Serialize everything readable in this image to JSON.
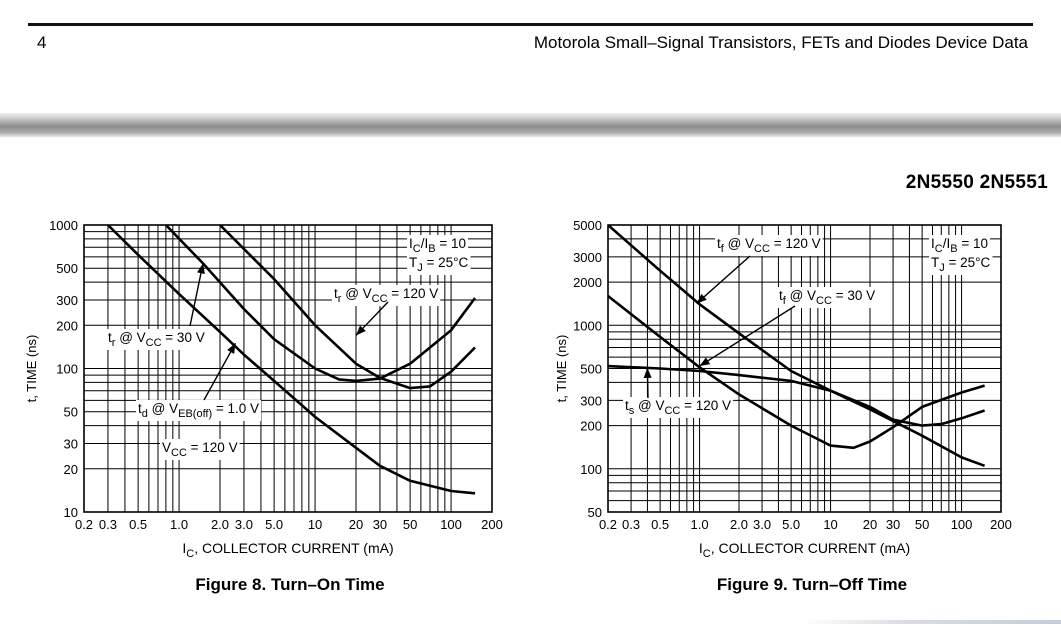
{
  "header": {
    "page_number": "4",
    "running_title": "Motorola Small–Signal Transistors, FETs and Diodes Device Data"
  },
  "part_title": "2N5550 2N5551",
  "chart_data": [
    {
      "id": "fig8",
      "type": "line",
      "title": "Figure 8. Turn–On Time",
      "xlabel": "I_C, COLLECTOR CURRENT (mA)",
      "ylabel": "t, TIME (ns)",
      "xscale": "log",
      "yscale": "log",
      "xlim": [
        0.2,
        200
      ],
      "ylim": [
        10,
        1000
      ],
      "grid": true,
      "xticks": [
        0.2,
        0.3,
        0.5,
        1.0,
        2.0,
        3.0,
        5.0,
        10,
        20,
        30,
        50,
        100,
        200
      ],
      "xtick_labels": [
        "0.2",
        "0.3",
        "0.5",
        "1.0",
        "2.0",
        "3.0",
        "5.0",
        "10",
        "20",
        "30",
        "50",
        "100",
        "200"
      ],
      "yticks": [
        10,
        20,
        30,
        50,
        100,
        200,
        300,
        500,
        1000
      ],
      "ytick_labels": [
        "10",
        "20",
        "30",
        "50",
        "100",
        "200",
        "300",
        "500",
        "1000"
      ],
      "conditions": [
        "I_C/I_B = 10",
        "T_J = 25°C"
      ],
      "series": [
        {
          "name": "t_d @ V_EB(off) = 1.0 V, V_CC = 120 V",
          "x": [
            0.3,
            0.5,
            1.0,
            2.0,
            3.0,
            5.0,
            10,
            20,
            30,
            50,
            100,
            150
          ],
          "y": [
            1000,
            620,
            330,
            180,
            125,
            82,
            46,
            28,
            21,
            16.5,
            14,
            13.5
          ]
        },
        {
          "name": "t_r @ V_CC = 30 V",
          "x": [
            0.8,
            1.5,
            3.0,
            5.0,
            10,
            15,
            20,
            30,
            50,
            100,
            150
          ],
          "y": [
            1000,
            540,
            260,
            160,
            100,
            84,
            82,
            85,
            108,
            185,
            310
          ]
        },
        {
          "name": "t_r @ V_CC = 120 V",
          "x": [
            2.0,
            5.0,
            10,
            20,
            30,
            50,
            70,
            100,
            150
          ],
          "y": [
            1000,
            420,
            200,
            108,
            86,
            73,
            75,
            95,
            140
          ]
        }
      ],
      "annotations": {
        "tr30": {
          "t": "t",
          "sub": "r",
          "mid": " @ V",
          "sub2": "CC",
          "end": " = 30 V"
        },
        "tr120": {
          "t": "t",
          "sub": "r",
          "mid": " @ V",
          "sub2": "CC",
          "end": " = 120 V"
        },
        "td": {
          "t": "t",
          "sub": "d",
          "mid": " @ V",
          "sub2": "EB(off)",
          "end": " = 1.0 V"
        },
        "vcc": {
          "t": "V",
          "sub": "CC",
          "end": " = 120 V"
        },
        "cond1": {
          "t": "I",
          "sub": "C",
          "mid": "/I",
          "sub2": "B",
          "end": " = 10"
        },
        "cond2": {
          "t": "T",
          "sub": "J",
          "end": " = 25°C"
        },
        "xlabel": {
          "t": "I",
          "sub": "C",
          "end": ", COLLECTOR CURRENT (mA)"
        },
        "ylabel": "t, TIME (ns)"
      }
    },
    {
      "id": "fig9",
      "type": "line",
      "title": "Figure 9. Turn–Off Time",
      "xlabel": "I_C, COLLECTOR CURRENT (mA)",
      "ylabel": "t, TIME (ns)",
      "xscale": "log",
      "yscale": "log",
      "xlim": [
        0.2,
        200
      ],
      "ylim": [
        50,
        5000
      ],
      "grid": true,
      "xticks": [
        0.2,
        0.3,
        0.5,
        1.0,
        2.0,
        3.0,
        5.0,
        10,
        20,
        30,
        50,
        100,
        200
      ],
      "xtick_labels": [
        "0.2",
        "0.3",
        "0.5",
        "1.0",
        "2.0",
        "3.0",
        "5.0",
        "10",
        "20",
        "30",
        "50",
        "100",
        "200"
      ],
      "yticks": [
        50,
        100,
        200,
        300,
        500,
        1000,
        2000,
        3000,
        5000
      ],
      "ytick_labels": [
        "50",
        "100",
        "200",
        "300",
        "500",
        "1000",
        "2000",
        "3000",
        "5000"
      ],
      "conditions": [
        "I_C/I_B = 10",
        "T_J = 25°C"
      ],
      "series": [
        {
          "name": "t_f @ V_CC = 120 V",
          "x": [
            0.2,
            0.5,
            1.0,
            2.0,
            5.0,
            10,
            20,
            50,
            100,
            150
          ],
          "y": [
            5000,
            2400,
            1400,
            880,
            480,
            350,
            260,
            170,
            120,
            105
          ]
        },
        {
          "name": "t_f @ V_CC = 30 V",
          "x": [
            0.2,
            0.5,
            1.0,
            2.0,
            5.0,
            10,
            15,
            20,
            30,
            50,
            100,
            150
          ],
          "y": [
            1600,
            830,
            510,
            330,
            200,
            145,
            140,
            155,
            195,
            270,
            340,
            380
          ]
        },
        {
          "name": "t_s @ V_CC = 120 V",
          "x": [
            0.2,
            0.5,
            1.0,
            2.0,
            5.0,
            10,
            20,
            30,
            50,
            70,
            100,
            150
          ],
          "y": [
            520,
            500,
            480,
            450,
            410,
            350,
            270,
            220,
            200,
            205,
            225,
            255
          ]
        }
      ],
      "annotations": {
        "tf120": {
          "t": "t",
          "sub": "f",
          "mid": " @ V",
          "sub2": "CC",
          "end": " = 120 V"
        },
        "tf30": {
          "t": "t",
          "sub": "f",
          "mid": " @ V",
          "sub2": "CC",
          "end": " = 30 V"
        },
        "ts120": {
          "t": "t",
          "sub": "s",
          "mid": " @ V",
          "sub2": "CC",
          "end": " = 120 V"
        },
        "cond1": {
          "t": "I",
          "sub": "C",
          "mid": "/I",
          "sub2": "B",
          "end": " = 10"
        },
        "cond2": {
          "t": "T",
          "sub": "J",
          "end": " = 25°C"
        },
        "xlabel": {
          "t": "I",
          "sub": "C",
          "end": ", COLLECTOR CURRENT (mA)"
        },
        "ylabel": "t, TIME (ns)"
      }
    }
  ]
}
